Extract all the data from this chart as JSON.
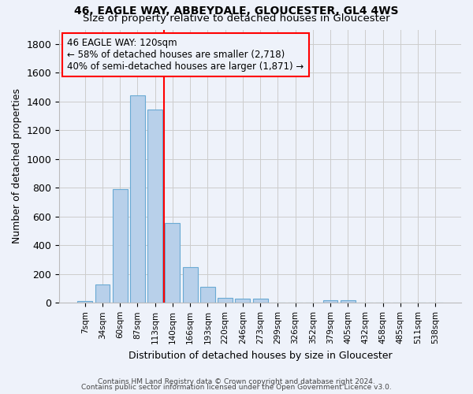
{
  "title1": "46, EAGLE WAY, ABBEYDALE, GLOUCESTER, GL4 4WS",
  "title2": "Size of property relative to detached houses in Gloucester",
  "xlabel": "Distribution of detached houses by size in Gloucester",
  "ylabel": "Number of detached properties",
  "bar_labels": [
    "7sqm",
    "34sqm",
    "60sqm",
    "87sqm",
    "113sqm",
    "140sqm",
    "166sqm",
    "193sqm",
    "220sqm",
    "246sqm",
    "273sqm",
    "299sqm",
    "326sqm",
    "352sqm",
    "379sqm",
    "405sqm",
    "432sqm",
    "458sqm",
    "485sqm",
    "511sqm",
    "538sqm"
  ],
  "bar_values": [
    15,
    130,
    790,
    1440,
    1345,
    555,
    250,
    110,
    35,
    30,
    30,
    0,
    0,
    0,
    20,
    20,
    0,
    0,
    0,
    0,
    0
  ],
  "bar_color": "#b8d0ea",
  "bar_edgecolor": "#6aaad4",
  "vline_x": 4.5,
  "vline_color": "red",
  "annotation_line1": "46 EAGLE WAY: 120sqm",
  "annotation_line2": "← 58% of detached houses are smaller (2,718)",
  "annotation_line3": "40% of semi-detached houses are larger (1,871) →",
  "annotation_box_color": "red",
  "background_color": "#eef2fa",
  "grid_color": "#cccccc",
  "ylim": [
    0,
    1900
  ],
  "footer1": "Contains HM Land Registry data © Crown copyright and database right 2024.",
  "footer2": "Contains public sector information licensed under the Open Government Licence v3.0."
}
